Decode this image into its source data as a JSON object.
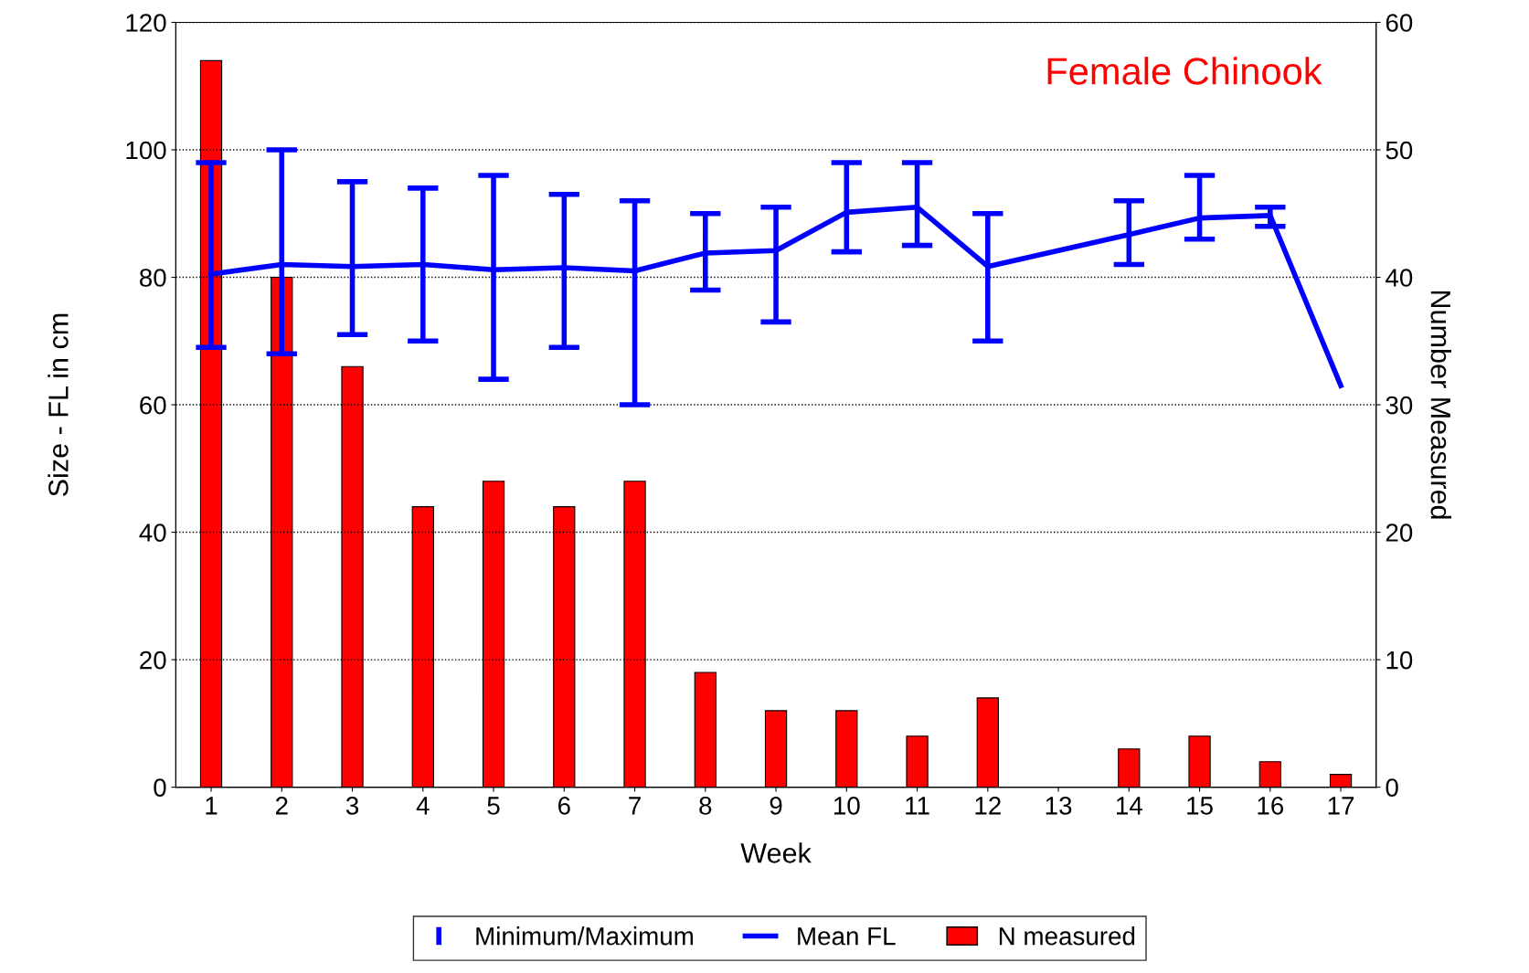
{
  "chart_data": {
    "type": "bar",
    "title": "Female Chinook",
    "xlabel": "Week",
    "ylabel": "Size - FL in cm",
    "y2label": "Number Measured",
    "x": [
      1,
      2,
      3,
      4,
      5,
      6,
      7,
      8,
      9,
      10,
      11,
      12,
      13,
      14,
      15,
      16,
      17
    ],
    "xlim": [
      0.5,
      17.5
    ],
    "xticks": [
      1,
      2,
      3,
      4,
      5,
      6,
      7,
      8,
      9,
      10,
      11,
      12,
      13,
      14,
      15,
      16,
      17
    ],
    "ylim": [
      0,
      120
    ],
    "yticks": [
      0,
      20,
      40,
      60,
      80,
      100,
      120
    ],
    "y2lim": [
      0,
      60
    ],
    "y2ticks": [
      0,
      10,
      20,
      30,
      40,
      50,
      60
    ],
    "grid": "y",
    "legend": "bottom",
    "annotations": [
      "Minimum/Maximum"
    ],
    "series": [
      {
        "name": "Mean FL",
        "type": "line",
        "axis": "y",
        "color": "#0000ff",
        "x": [
          1,
          2,
          3,
          4,
          5,
          6,
          7,
          8,
          9,
          10,
          11,
          12,
          14,
          15,
          16,
          17
        ],
        "values": [
          80.5,
          82,
          81.7,
          82,
          81.2,
          81.5,
          81,
          83.8,
          84.2,
          90.2,
          91,
          81.7,
          86.7,
          89.3,
          89.7,
          63
        ],
        "errors": [
          [
            69,
            98
          ],
          [
            68,
            100
          ],
          [
            71,
            95
          ],
          [
            70,
            94
          ],
          [
            64,
            96
          ],
          [
            69,
            93
          ],
          [
            60,
            92
          ],
          [
            78,
            90
          ],
          [
            73,
            91
          ],
          [
            84,
            98
          ],
          [
            85,
            98
          ],
          [
            70,
            90
          ],
          [
            82,
            92
          ],
          [
            86,
            96
          ],
          [
            88,
            91
          ],
          null
        ]
      },
      {
        "name": "N measured",
        "axis": "y2",
        "color": "#ff0000",
        "values": [
          57,
          40,
          33,
          22,
          24,
          22,
          24,
          9,
          6,
          6,
          4,
          7,
          0,
          3,
          4,
          2,
          1
        ]
      }
    ]
  }
}
